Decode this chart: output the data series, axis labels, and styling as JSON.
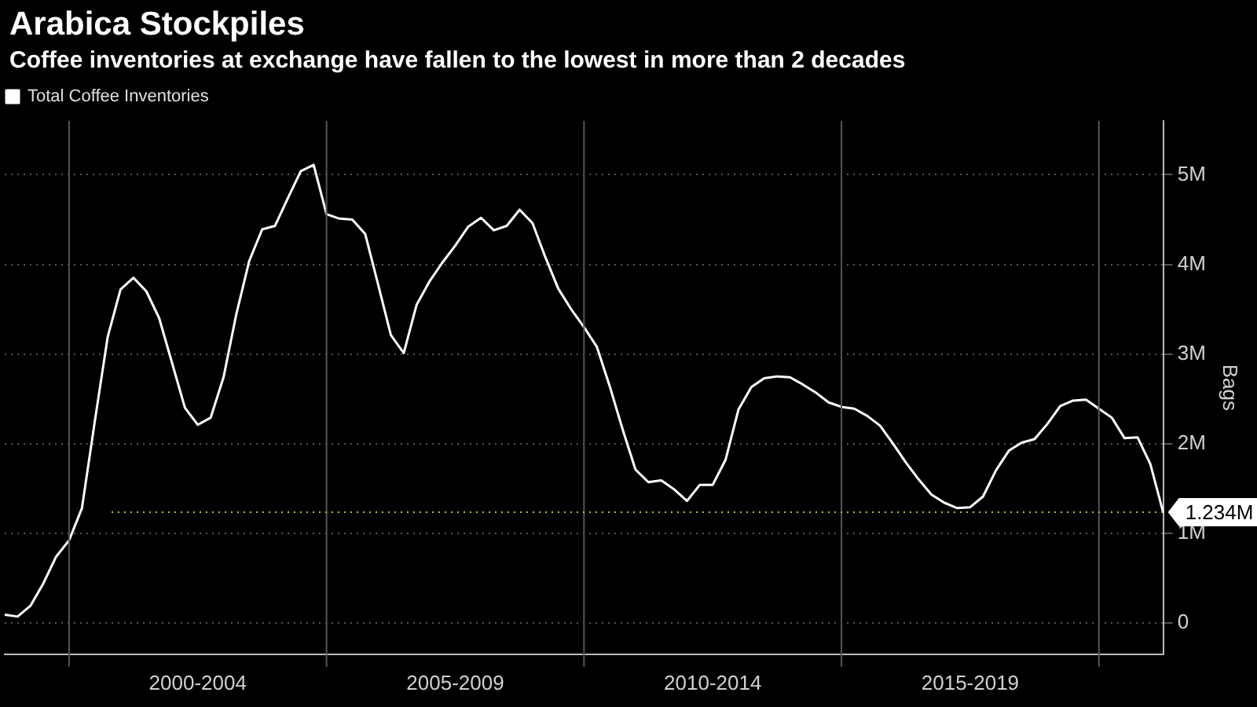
{
  "chart_data": {
    "type": "line",
    "title": "Arabica Stockpiles",
    "subtitle": "Coffee inventories at exchange have fallen to the lowest in more than 2 decades",
    "ylabel": "Bags",
    "legend": "top left",
    "grid": true,
    "marker": "none",
    "line_style": "solid",
    "categories": [
      null,
      null,
      null,
      null,
      null,
      null,
      null,
      null,
      null,
      null,
      null,
      null,
      null,
      null,
      null,
      "2000-2004",
      null,
      null,
      null,
      null,
      null,
      null,
      null,
      null,
      null,
      null,
      null,
      null,
      null,
      null,
      null,
      null,
      null,
      null,
      null,
      "2005-2009",
      null,
      null,
      null,
      null,
      null,
      null,
      null,
      null,
      null,
      null,
      null,
      null,
      null,
      null,
      null,
      null,
      null,
      null,
      null,
      "2010-2014",
      null,
      null,
      null,
      null,
      null,
      null,
      null,
      null,
      null,
      null,
      null,
      null,
      null,
      null,
      null,
      null,
      null,
      null,
      null,
      "2015-2019",
      null,
      null,
      null,
      null,
      null,
      null,
      null,
      null,
      null,
      null,
      null,
      null,
      null,
      null,
      null
    ],
    "ylim": [
      -0.35,
      5.6
    ],
    "yticks": [
      {
        "value": 0,
        "label": "0"
      },
      {
        "value": 1,
        "label": "1M"
      },
      {
        "value": 2,
        "label": "2M"
      },
      {
        "value": 3,
        "label": "3M"
      },
      {
        "value": 4,
        "label": "4M"
      },
      {
        "value": 5,
        "label": "5M"
      }
    ],
    "ref_lines": [
      {
        "axis": "y",
        "value": 1.234,
        "label": "1.234M",
        "color": "#9acd32",
        "line_style": "dotted"
      }
    ],
    "series": [
      {
        "name": "Total Coffee Inventories",
        "color": "#ffffff",
        "values": [
          0.09,
          0.07,
          0.19,
          0.44,
          0.74,
          0.92,
          1.28,
          2.25,
          3.19,
          3.72,
          3.85,
          3.7,
          3.4,
          2.9,
          2.4,
          2.21,
          2.29,
          2.74,
          3.45,
          4.04,
          4.39,
          4.43,
          4.74,
          5.04,
          5.11,
          4.56,
          4.51,
          4.5,
          4.34,
          3.78,
          3.21,
          3.01,
          3.55,
          3.81,
          4.02,
          4.21,
          4.42,
          4.52,
          4.38,
          4.43,
          4.61,
          4.46,
          4.08,
          3.73,
          3.5,
          3.3,
          3.08,
          2.64,
          2.16,
          1.71,
          1.57,
          1.59,
          1.49,
          1.36,
          1.54,
          1.54,
          1.82,
          2.38,
          2.63,
          2.73,
          2.75,
          2.74,
          2.66,
          2.57,
          2.46,
          2.41,
          2.39,
          2.31,
          2.2,
          2.0,
          1.79,
          1.6,
          1.43,
          1.34,
          1.28,
          1.29,
          1.41,
          1.7,
          1.92,
          2.01,
          2.05,
          2.22,
          2.42,
          2.48,
          2.49,
          2.39,
          2.29,
          2.06,
          2.07,
          1.77,
          1.23
        ]
      }
    ]
  }
}
